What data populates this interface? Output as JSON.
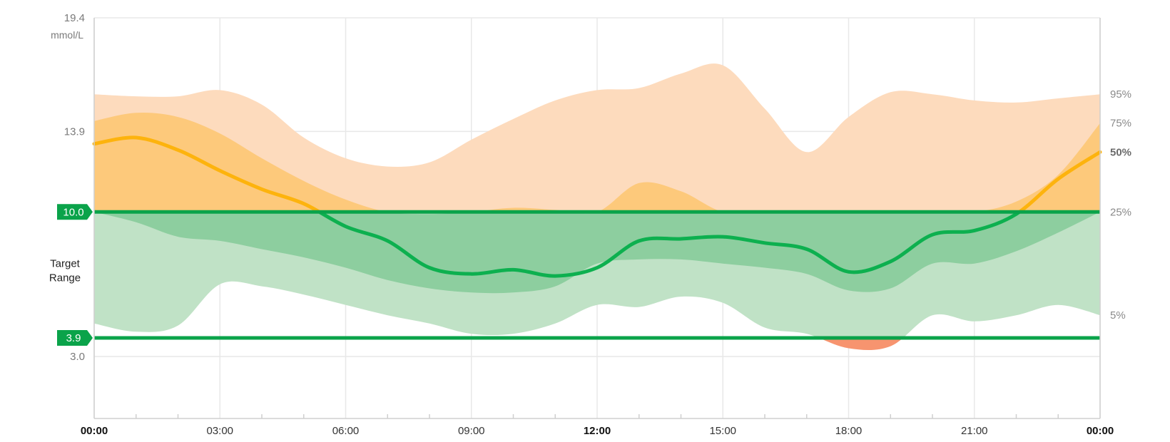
{
  "chart_data": {
    "type": "area",
    "y_unit": "mmol/L",
    "ylim": [
      0,
      19.4
    ],
    "y_tick_labels": [
      {
        "value": 19.4,
        "label": "19.4"
      },
      {
        "value": 13.9,
        "label": "13.9"
      },
      {
        "value": 3.0,
        "label": "3.0"
      }
    ],
    "target_range": {
      "label_line1": "Target",
      "label_line2": "Range",
      "low": 3.9,
      "low_label": "3.9",
      "high": 10.0,
      "high_label": "10.0"
    },
    "x_ticks": [
      {
        "h": 0,
        "label": "00:00",
        "bold": true
      },
      {
        "h": 3,
        "label": "03:00",
        "bold": false
      },
      {
        "h": 6,
        "label": "06:00",
        "bold": false
      },
      {
        "h": 9,
        "label": "09:00",
        "bold": false
      },
      {
        "h": 12,
        "label": "12:00",
        "bold": true
      },
      {
        "h": 15,
        "label": "15:00",
        "bold": false
      },
      {
        "h": 18,
        "label": "18:00",
        "bold": false
      },
      {
        "h": 21,
        "label": "21:00",
        "bold": false
      },
      {
        "h": 24,
        "label": "00:00",
        "bold": true
      }
    ],
    "x_hours": [
      0,
      1,
      2,
      3,
      4,
      5,
      6,
      7,
      8,
      9,
      10,
      11,
      12,
      13,
      14,
      15,
      16,
      17,
      18,
      19,
      20,
      21,
      22,
      23,
      24
    ],
    "percentiles": {
      "p95": [
        15.7,
        15.6,
        15.6,
        15.9,
        15.2,
        13.6,
        12.6,
        12.2,
        12.4,
        13.5,
        14.5,
        15.4,
        15.9,
        16.0,
        16.7,
        17.1,
        15.0,
        12.9,
        14.6,
        15.8,
        15.7,
        15.4,
        15.3,
        15.5,
        15.7
      ],
      "p75": [
        14.4,
        14.8,
        14.6,
        13.8,
        12.6,
        11.5,
        10.6,
        10.0,
        9.9,
        10.0,
        10.2,
        10.1,
        10.0,
        11.4,
        11.0,
        10.0,
        10.0,
        10.0,
        10.0,
        10.0,
        10.0,
        10.0,
        10.5,
        11.8,
        14.3
      ],
      "p50": [
        13.3,
        13.6,
        13.0,
        12.0,
        11.1,
        10.4,
        9.3,
        8.6,
        7.3,
        7.0,
        7.2,
        6.9,
        7.3,
        8.6,
        8.7,
        8.8,
        8.5,
        8.2,
        7.1,
        7.6,
        8.9,
        9.1,
        9.9,
        11.6,
        12.9
      ],
      "p25": [
        10.0,
        9.5,
        8.8,
        8.6,
        8.2,
        7.8,
        7.3,
        6.7,
        6.3,
        6.1,
        6.1,
        6.4,
        7.5,
        7.7,
        7.7,
        7.5,
        7.3,
        7.0,
        6.2,
        6.3,
        7.5,
        7.5,
        8.1,
        9.0,
        10.0
      ],
      "p5": [
        4.6,
        4.2,
        4.5,
        6.5,
        6.4,
        6.0,
        5.5,
        5.0,
        4.6,
        4.1,
        4.1,
        4.6,
        5.5,
        5.4,
        5.9,
        5.6,
        4.4,
        4.1,
        3.4,
        3.5,
        5.0,
        4.7,
        5.0,
        5.5,
        5.0
      ]
    },
    "percentile_labels": [
      {
        "key": "p95",
        "label": "95%",
        "bold": false
      },
      {
        "key": "p75",
        "label": "75%",
        "bold": false
      },
      {
        "key": "p50",
        "label": "50%",
        "bold": true
      },
      {
        "key": "p25",
        "label": "25%",
        "bold": false
      },
      {
        "key": "p5",
        "label": "5%",
        "bold": false
      }
    ],
    "colors": {
      "outer_high": "#fddbbd",
      "inner_high": "#fdc97b",
      "outer_in_range": "#c0e2c6",
      "inner_in_range": "#8dce9f",
      "outer_low": "#f7946f",
      "median_high": "#fdb30d",
      "median_in_range": "#0db04f",
      "target_line": "#0aa34a",
      "grid": "#e8e8e8",
      "axis": "#cfcfcf"
    }
  }
}
